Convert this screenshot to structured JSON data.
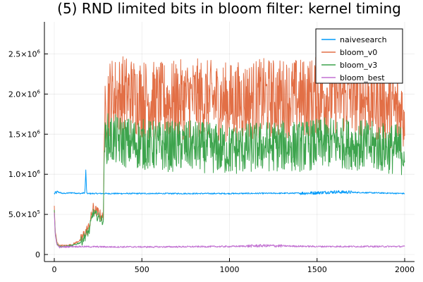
{
  "chart_data": {
    "type": "line",
    "title": "(5) RND limited bits in bloom filter: kernel timing",
    "xlabel": "",
    "ylabel": "",
    "xlim": [
      0,
      2000
    ],
    "ylim": [
      0,
      2900000
    ],
    "x_ticks": [
      0,
      500,
      1000,
      1500,
      2000
    ],
    "x_tick_labels": [
      "0",
      "500",
      "1000",
      "1500",
      "2000"
    ],
    "y_ticks": [
      0,
      500000,
      1000000,
      1500000,
      2000000,
      2500000
    ],
    "y_tick_labels": [
      {
        "base": "0",
        "exp": ""
      },
      {
        "base": "5.0×10",
        "exp": "5"
      },
      {
        "base": "1.0×10",
        "exp": "6"
      },
      {
        "base": "1.5×10",
        "exp": "6"
      },
      {
        "base": "2.0×10",
        "exp": "6"
      },
      {
        "base": "2.5×10",
        "exp": "6"
      }
    ],
    "grid": true,
    "legend_position": "top-right",
    "series": [
      {
        "name": "naivesearch",
        "color": "#009af9",
        "points": [
          [
            0,
            760000
          ],
          [
            20,
            780000
          ],
          [
            50,
            760000
          ],
          [
            100,
            770000
          ],
          [
            150,
            760000
          ],
          [
            175,
            770000
          ],
          [
            180,
            1050000
          ],
          [
            185,
            760000
          ],
          [
            300,
            760000
          ],
          [
            600,
            760000
          ],
          [
            1000,
            760000
          ],
          [
            1450,
            765000
          ],
          [
            1600,
            780000
          ],
          [
            2000,
            760000
          ]
        ]
      },
      {
        "name": "bloom_v0",
        "color": "#e26f46",
        "points": [
          [
            0,
            600000
          ],
          [
            5,
            300000
          ],
          [
            15,
            150000
          ],
          [
            30,
            110000
          ],
          [
            60,
            110000
          ],
          [
            100,
            120000
          ],
          [
            150,
            180000
          ],
          [
            200,
            350000
          ],
          [
            220,
            580000
          ],
          [
            250,
            520000
          ],
          [
            280,
            450000
          ],
          [
            285,
            1500000
          ],
          [
            300,
            1950000
          ],
          [
            400,
            2000000
          ],
          [
            600,
            1900000
          ],
          [
            800,
            1950000
          ],
          [
            1000,
            1900000
          ],
          [
            1200,
            1950000
          ],
          [
            1400,
            1950000
          ],
          [
            1600,
            2000000
          ],
          [
            1800,
            1950000
          ],
          [
            2000,
            1750000
          ]
        ]
      },
      {
        "name": "bloom_v3",
        "color": "#3da44d",
        "points": [
          [
            0,
            560000
          ],
          [
            5,
            280000
          ],
          [
            15,
            130000
          ],
          [
            30,
            100000
          ],
          [
            60,
            100000
          ],
          [
            100,
            110000
          ],
          [
            150,
            150000
          ],
          [
            200,
            300000
          ],
          [
            220,
            520000
          ],
          [
            250,
            470000
          ],
          [
            280,
            420000
          ],
          [
            285,
            1300000
          ],
          [
            300,
            1450000
          ],
          [
            400,
            1400000
          ],
          [
            600,
            1350000
          ],
          [
            800,
            1350000
          ],
          [
            1000,
            1300000
          ],
          [
            1200,
            1350000
          ],
          [
            1400,
            1350000
          ],
          [
            1600,
            1400000
          ],
          [
            1800,
            1350000
          ],
          [
            2000,
            1300000
          ]
        ]
      },
      {
        "name": "bloom_best",
        "color": "#c271d2",
        "points": [
          [
            0,
            520000
          ],
          [
            5,
            250000
          ],
          [
            15,
            120000
          ],
          [
            30,
            90000
          ],
          [
            60,
            95000
          ],
          [
            100,
            100000
          ],
          [
            300,
            95000
          ],
          [
            600,
            95000
          ],
          [
            1000,
            100000
          ],
          [
            1200,
            110000
          ],
          [
            1500,
            100000
          ],
          [
            1800,
            100000
          ],
          [
            2000,
            100000
          ]
        ]
      }
    ]
  }
}
